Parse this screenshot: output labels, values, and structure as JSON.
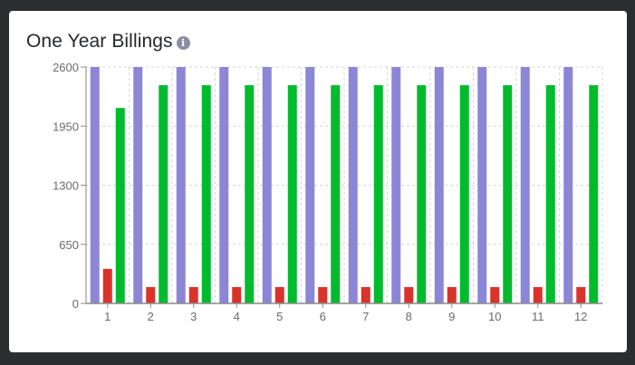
{
  "card": {
    "title": "One Year Billings",
    "info_icon": "info-icon"
  },
  "chart_data": {
    "type": "bar",
    "title": "One Year Billings",
    "categories": [
      "1",
      "2",
      "3",
      "4",
      "5",
      "6",
      "7",
      "8",
      "9",
      "10",
      "11",
      "12"
    ],
    "series": [
      {
        "color": "#8c86d6",
        "values": [
          2600,
          2600,
          2600,
          2600,
          2600,
          2600,
          2600,
          2600,
          2600,
          2600,
          2600,
          2600
        ]
      },
      {
        "color": "#d9332b",
        "values": [
          380,
          180,
          180,
          180,
          180,
          180,
          180,
          180,
          180,
          180,
          180,
          180
        ]
      },
      {
        "color": "#00bb2d",
        "values": [
          2150,
          2400,
          2400,
          2400,
          2400,
          2400,
          2400,
          2400,
          2400,
          2400,
          2400,
          2400
        ]
      }
    ],
    "yticks": [
      0,
      650,
      1300,
      1950,
      2600
    ],
    "ylim": [
      0,
      2600
    ],
    "grid": true,
    "xlabel": "",
    "ylabel": ""
  }
}
